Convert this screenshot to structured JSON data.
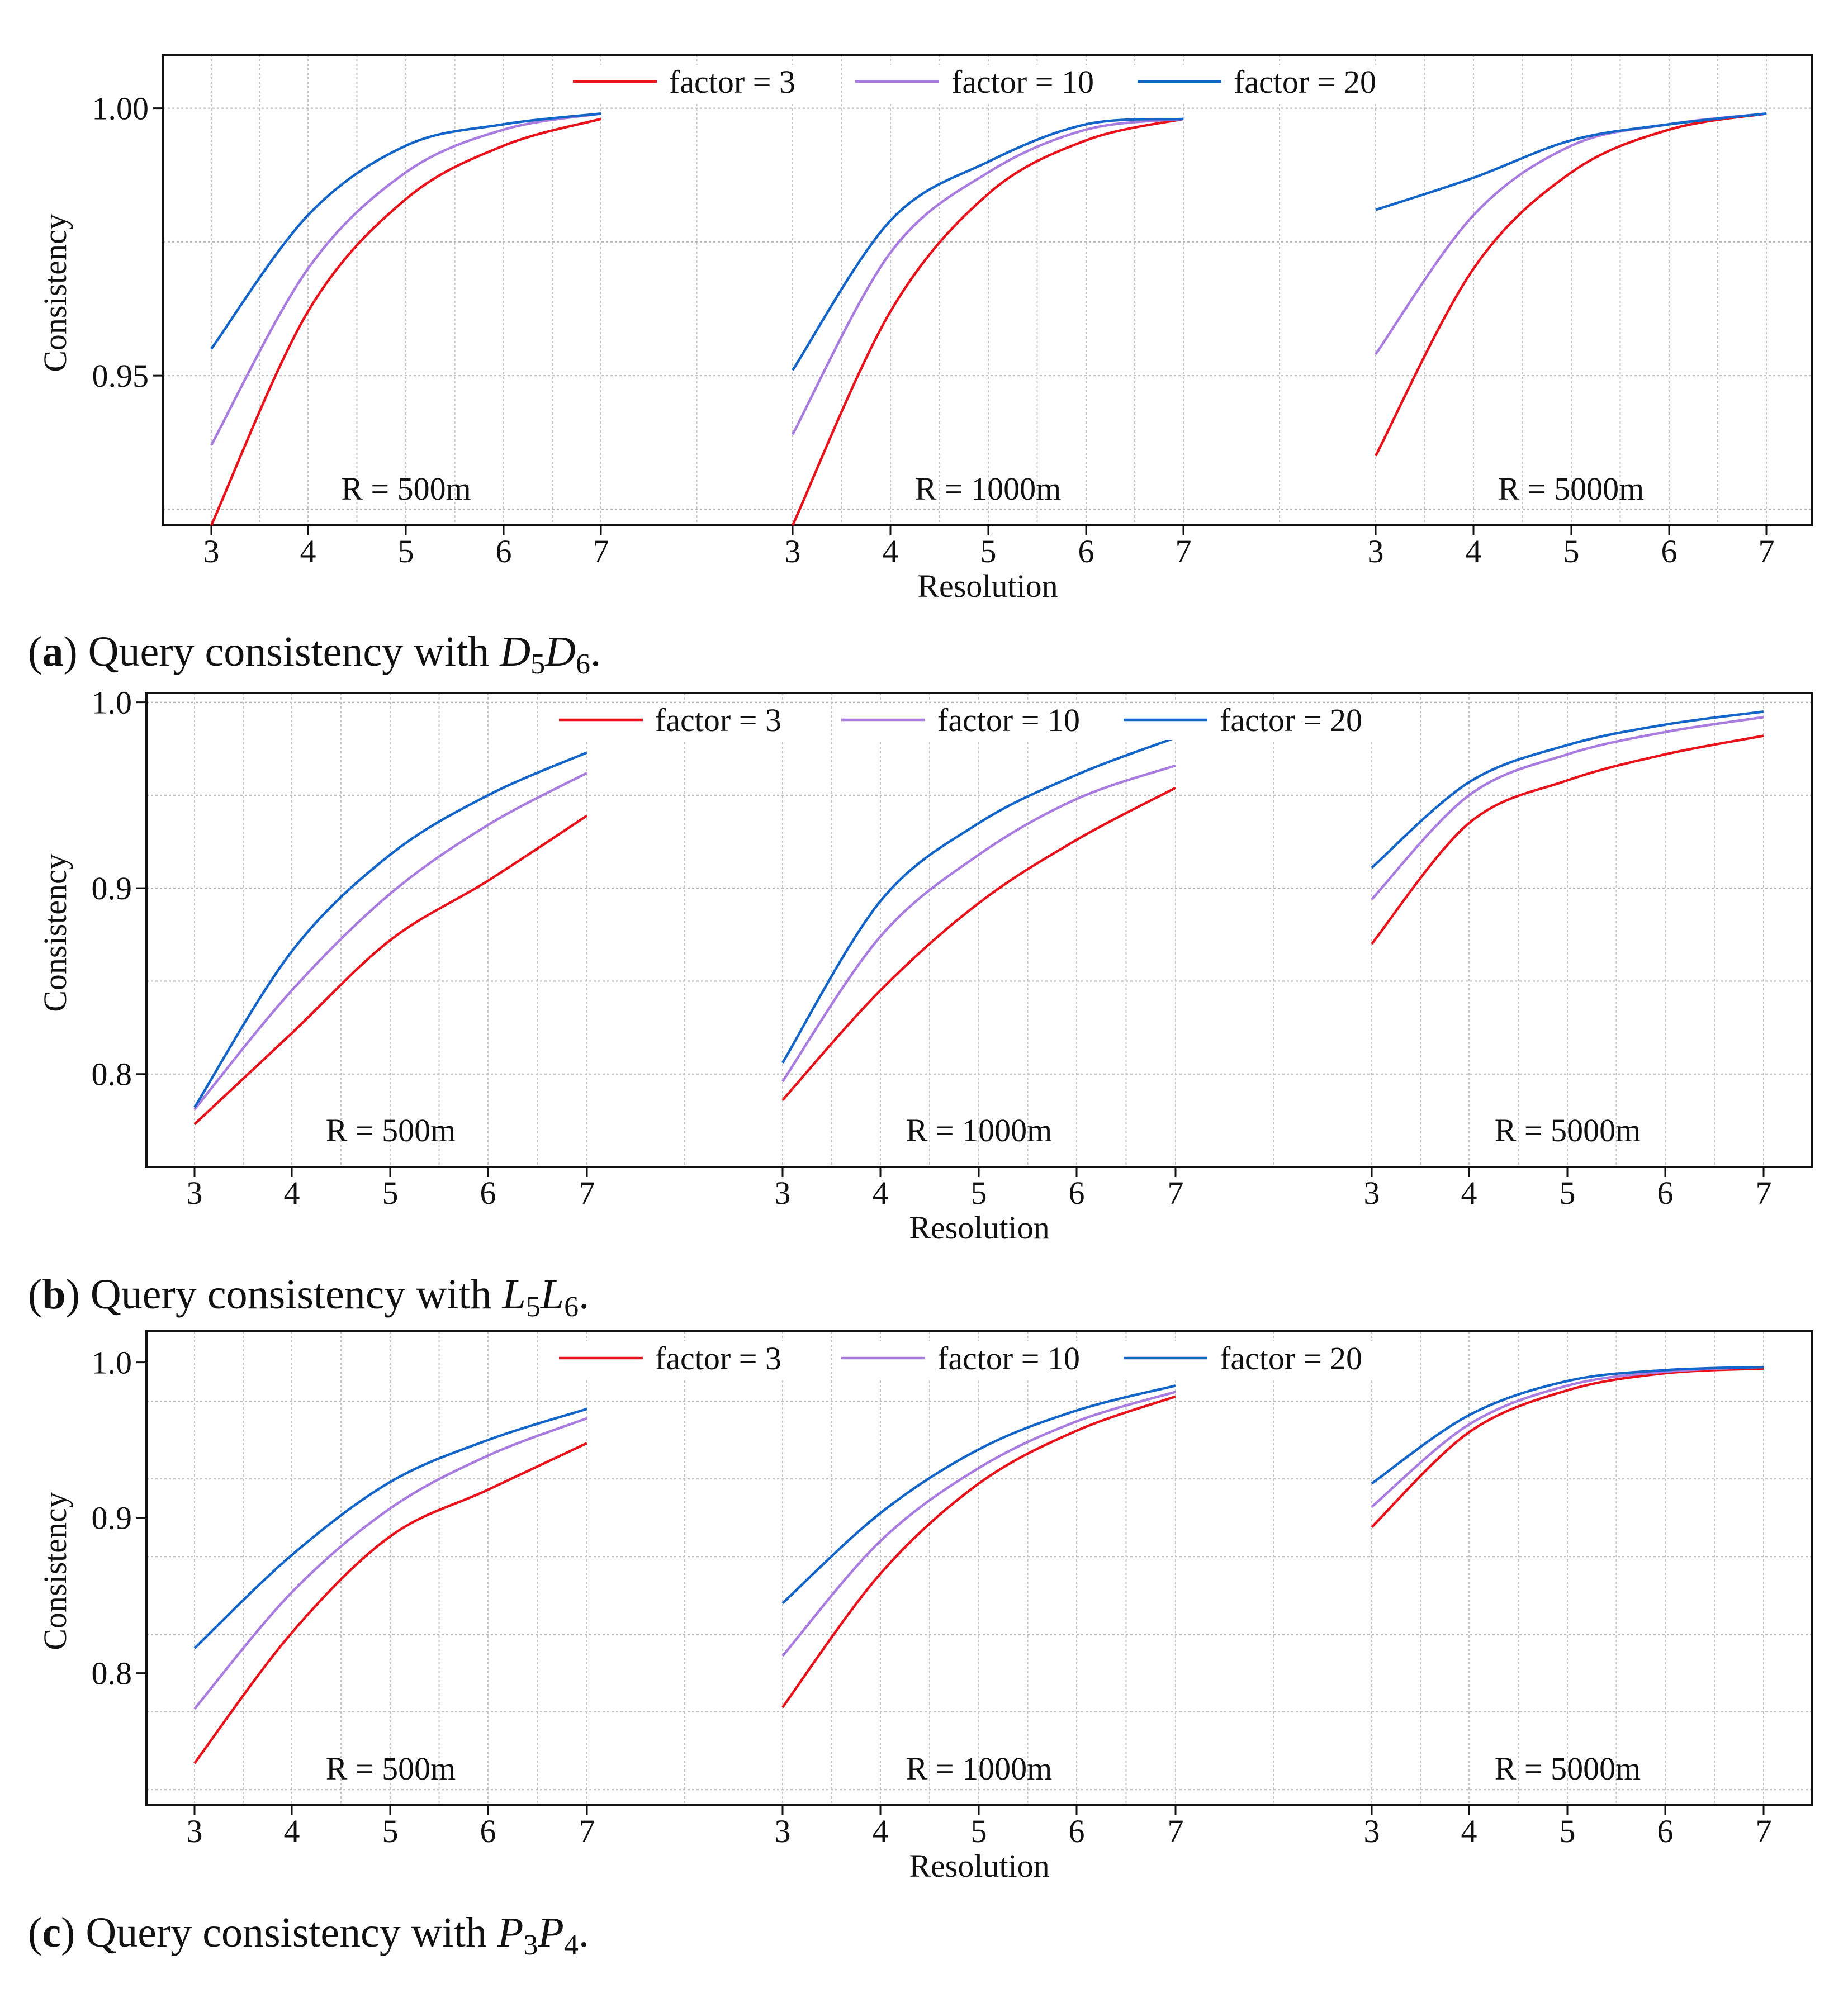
{
  "chart_data": [
    {
      "id": "a",
      "type": "line",
      "caption": {
        "label": "a",
        "prefix": "Query consistency with",
        "sym1": "D",
        "sub1": "5",
        "sym2": "D",
        "sub2": "6"
      },
      "xlabel": "Resolution",
      "ylabel": "Consistency",
      "ylim": [
        0.922,
        1.01
      ],
      "yticks": [
        0.95,
        1.0
      ],
      "ytick_labels": [
        "0.95",
        "1.00"
      ],
      "x": [
        3,
        4,
        5,
        6,
        7
      ],
      "xtick_labels": [
        "3",
        "4",
        "5",
        "6",
        "7"
      ],
      "grid": true,
      "legend": {
        "position": "top-center",
        "entries": [
          "factor = 3",
          "factor = 10",
          "factor = 20"
        ]
      },
      "panels": [
        {
          "label": "R = 500m",
          "series": [
            {
              "name": "factor = 3",
              "color": "#e8121b",
              "values": [
                0.922,
                0.962,
                0.983,
                0.993,
                0.998
              ]
            },
            {
              "name": "factor = 10",
              "color": "#a97cdf",
              "values": [
                0.937,
                0.97,
                0.988,
                0.996,
                0.999
              ]
            },
            {
              "name": "factor = 20",
              "color": "#1465c8",
              "values": [
                0.955,
                0.98,
                0.993,
                0.997,
                0.999
              ]
            }
          ]
        },
        {
          "label": "R = 1000m",
          "series": [
            {
              "name": "factor = 3",
              "color": "#e8121b",
              "values": [
                0.922,
                0.962,
                0.984,
                0.994,
                0.998
              ]
            },
            {
              "name": "factor = 10",
              "color": "#a97cdf",
              "values": [
                0.939,
                0.973,
                0.988,
                0.996,
                0.998
              ]
            },
            {
              "name": "factor = 20",
              "color": "#1465c8",
              "values": [
                0.951,
                0.979,
                0.99,
                0.997,
                0.998
              ]
            }
          ]
        },
        {
          "label": "R = 5000m",
          "series": [
            {
              "name": "factor = 3",
              "color": "#e8121b",
              "values": [
                0.935,
                0.97,
                0.988,
                0.996,
                0.999
              ]
            },
            {
              "name": "factor = 10",
              "color": "#a97cdf",
              "values": [
                0.954,
                0.98,
                0.993,
                0.997,
                0.999
              ]
            },
            {
              "name": "factor = 20",
              "color": "#1465c8",
              "values": [
                0.981,
                0.987,
                0.994,
                0.997,
                0.999
              ]
            }
          ]
        }
      ]
    },
    {
      "id": "b",
      "type": "line",
      "caption": {
        "label": "b",
        "prefix": "Query consistency with",
        "sym1": "L",
        "sub1": "5",
        "sym2": "L",
        "sub2": "6"
      },
      "xlabel": "Resolution",
      "ylabel": "Consistency",
      "ylim": [
        0.75,
        1.005
      ],
      "yticks": [
        0.8,
        0.9,
        1.0
      ],
      "ytick_labels": [
        "0.8",
        "0.9",
        "1.0"
      ],
      "x": [
        3,
        4,
        5,
        6,
        7
      ],
      "xtick_labels": [
        "3",
        "4",
        "5",
        "6",
        "7"
      ],
      "grid": true,
      "legend": {
        "position": "top-center",
        "entries": [
          "factor = 3",
          "factor = 10",
          "factor = 20"
        ]
      },
      "panels": [
        {
          "label": "R = 500m",
          "series": [
            {
              "name": "factor = 3",
              "color": "#e8121b",
              "values": [
                0.773,
                0.822,
                0.872,
                0.904,
                0.939
              ]
            },
            {
              "name": "factor = 10",
              "color": "#a97cdf",
              "values": [
                0.781,
                0.845,
                0.897,
                0.934,
                0.962
              ]
            },
            {
              "name": "factor = 20",
              "color": "#1465c8",
              "values": [
                0.782,
                0.866,
                0.918,
                0.95,
                0.973
              ]
            }
          ]
        },
        {
          "label": "R = 1000m",
          "series": [
            {
              "name": "factor = 3",
              "color": "#e8121b",
              "values": [
                0.786,
                0.845,
                0.892,
                0.926,
                0.954
              ]
            },
            {
              "name": "factor = 10",
              "color": "#a97cdf",
              "values": [
                0.796,
                0.874,
                0.918,
                0.948,
                0.966
              ]
            },
            {
              "name": "factor = 20",
              "color": "#1465c8",
              "values": [
                0.806,
                0.893,
                0.935,
                0.961,
                0.981
              ]
            }
          ]
        },
        {
          "label": "R = 5000m",
          "series": [
            {
              "name": "factor = 3",
              "color": "#e8121b",
              "values": [
                0.87,
                0.935,
                0.958,
                0.972,
                0.982
              ]
            },
            {
              "name": "factor = 10",
              "color": "#a97cdf",
              "values": [
                0.894,
                0.95,
                0.972,
                0.984,
                0.992
              ]
            },
            {
              "name": "factor = 20",
              "color": "#1465c8",
              "values": [
                0.911,
                0.957,
                0.977,
                0.988,
                0.995
              ]
            }
          ]
        }
      ]
    },
    {
      "id": "c",
      "type": "line",
      "caption": {
        "label": "c",
        "prefix": "Query consistency with",
        "sym1": "P",
        "sub1": "3",
        "sym2": "P",
        "sub2": "4"
      },
      "xlabel": "Resolution",
      "ylabel": "Consistency",
      "ylim": [
        0.715,
        1.02
      ],
      "yticks": [
        0.8,
        0.9,
        1.0
      ],
      "ytick_labels": [
        "0.8",
        "0.9",
        "1.0"
      ],
      "x": [
        3,
        4,
        5,
        6,
        7
      ],
      "xtick_labels": [
        "3",
        "4",
        "5",
        "6",
        "7"
      ],
      "grid": true,
      "legend": {
        "position": "top-center",
        "entries": [
          "factor = 3",
          "factor = 10",
          "factor = 20"
        ]
      },
      "panels": [
        {
          "label": "R = 500m",
          "series": [
            {
              "name": "factor = 3",
              "color": "#e8121b",
              "values": [
                0.742,
                0.826,
                0.888,
                0.918,
                0.948
              ]
            },
            {
              "name": "factor = 10",
              "color": "#a97cdf",
              "values": [
                0.777,
                0.852,
                0.906,
                0.94,
                0.964
              ]
            },
            {
              "name": "factor = 20",
              "color": "#1465c8",
              "values": [
                0.816,
                0.876,
                0.923,
                0.95,
                0.97
              ]
            }
          ]
        },
        {
          "label": "R = 1000m",
          "series": [
            {
              "name": "factor = 3",
              "color": "#e8121b",
              "values": [
                0.778,
                0.864,
                0.922,
                0.956,
                0.978
              ]
            },
            {
              "name": "factor = 10",
              "color": "#a97cdf",
              "values": [
                0.811,
                0.885,
                0.932,
                0.962,
                0.981
              ]
            },
            {
              "name": "factor = 20",
              "color": "#1465c8",
              "values": [
                0.845,
                0.903,
                0.944,
                0.969,
                0.985
              ]
            }
          ]
        },
        {
          "label": "R = 5000m",
          "series": [
            {
              "name": "factor = 3",
              "color": "#e8121b",
              "values": [
                0.894,
                0.955,
                0.982,
                0.993,
                0.996
              ]
            },
            {
              "name": "factor = 10",
              "color": "#a97cdf",
              "values": [
                0.907,
                0.96,
                0.985,
                0.994,
                0.997
              ]
            },
            {
              "name": "factor = 20",
              "color": "#1465c8",
              "values": [
                0.922,
                0.966,
                0.988,
                0.995,
                0.997
              ]
            }
          ]
        }
      ]
    }
  ]
}
